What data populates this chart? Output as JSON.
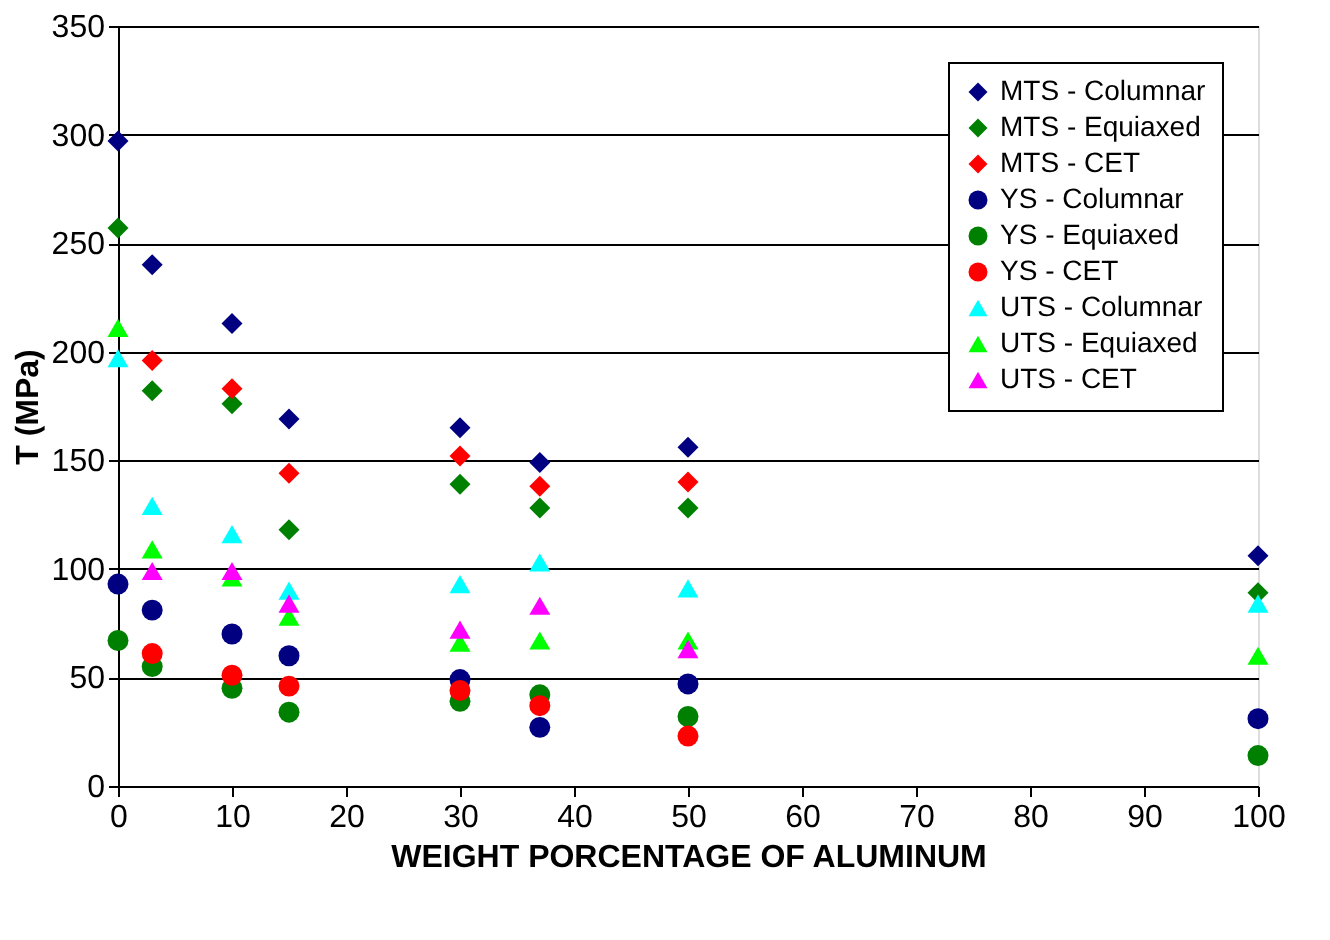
{
  "chart_data": {
    "type": "scatter",
    "xlabel": "WEIGHT PORCENTAGE OF ALUMINUM",
    "ylabel": "T (MPa)",
    "xlim": [
      0,
      100
    ],
    "xticks": [
      0,
      10,
      20,
      30,
      40,
      50,
      60,
      70,
      80,
      90,
      100
    ],
    "ylim": [
      0,
      350
    ],
    "yticks": [
      0,
      50,
      100,
      150,
      200,
      250,
      300,
      350
    ],
    "grid": "y",
    "legend": "top right",
    "series": [
      {
        "name": "MTS - Columnar",
        "color": "#000080",
        "marker": "diamond",
        "x": [
          0,
          3,
          10,
          15,
          30,
          37,
          50,
          100
        ],
        "values": [
          297,
          240,
          213,
          169,
          165,
          149,
          156,
          106
        ]
      },
      {
        "name": "MTS - Equiaxed",
        "color": "#008000",
        "marker": "diamond",
        "x": [
          0,
          3,
          10,
          15,
          30,
          37,
          50,
          100
        ],
        "values": [
          257,
          182,
          176,
          118,
          139,
          128,
          128,
          89
        ]
      },
      {
        "name": "MTS - CET",
        "color": "#ff0000",
        "marker": "diamond",
        "x": [
          3,
          10,
          15,
          30,
          37,
          50
        ],
        "values": [
          196,
          183,
          144,
          152,
          138,
          140
        ]
      },
      {
        "name": "YS - Columnar",
        "color": "#000080",
        "marker": "circle",
        "x": [
          0,
          3,
          10,
          15,
          30,
          37,
          50,
          100
        ],
        "values": [
          93,
          81,
          70,
          60,
          49,
          27,
          47,
          31
        ]
      },
      {
        "name": "YS - Equiaxed",
        "color": "#008000",
        "marker": "circle",
        "x": [
          0,
          3,
          10,
          15,
          30,
          37,
          50,
          100
        ],
        "values": [
          67,
          55,
          45,
          34,
          39,
          42,
          32,
          14
        ]
      },
      {
        "name": "YS - CET",
        "color": "#ff0000",
        "marker": "circle",
        "x": [
          3,
          10,
          15,
          30,
          37,
          50
        ],
        "values": [
          61,
          51,
          46,
          44,
          37,
          23
        ]
      },
      {
        "name": "UTS - Columnar",
        "color": "#00ffff",
        "marker": "triangle",
        "x": [
          0,
          3,
          10,
          15,
          30,
          37,
          50,
          100
        ],
        "values": [
          197,
          129,
          116,
          90,
          93,
          103,
          91,
          84
        ]
      },
      {
        "name": "UTS - Equiaxed",
        "color": "#00ff00",
        "marker": "triangle",
        "x": [
          0,
          3,
          10,
          15,
          30,
          37,
          50,
          100
        ],
        "values": [
          211,
          109,
          96,
          78,
          66,
          67,
          67,
          60
        ]
      },
      {
        "name": "UTS - CET",
        "color": "#ff00ff",
        "marker": "triangle",
        "x": [
          3,
          10,
          15,
          30,
          37,
          50
        ],
        "values": [
          99,
          99,
          84,
          72,
          83,
          63
        ]
      }
    ]
  }
}
